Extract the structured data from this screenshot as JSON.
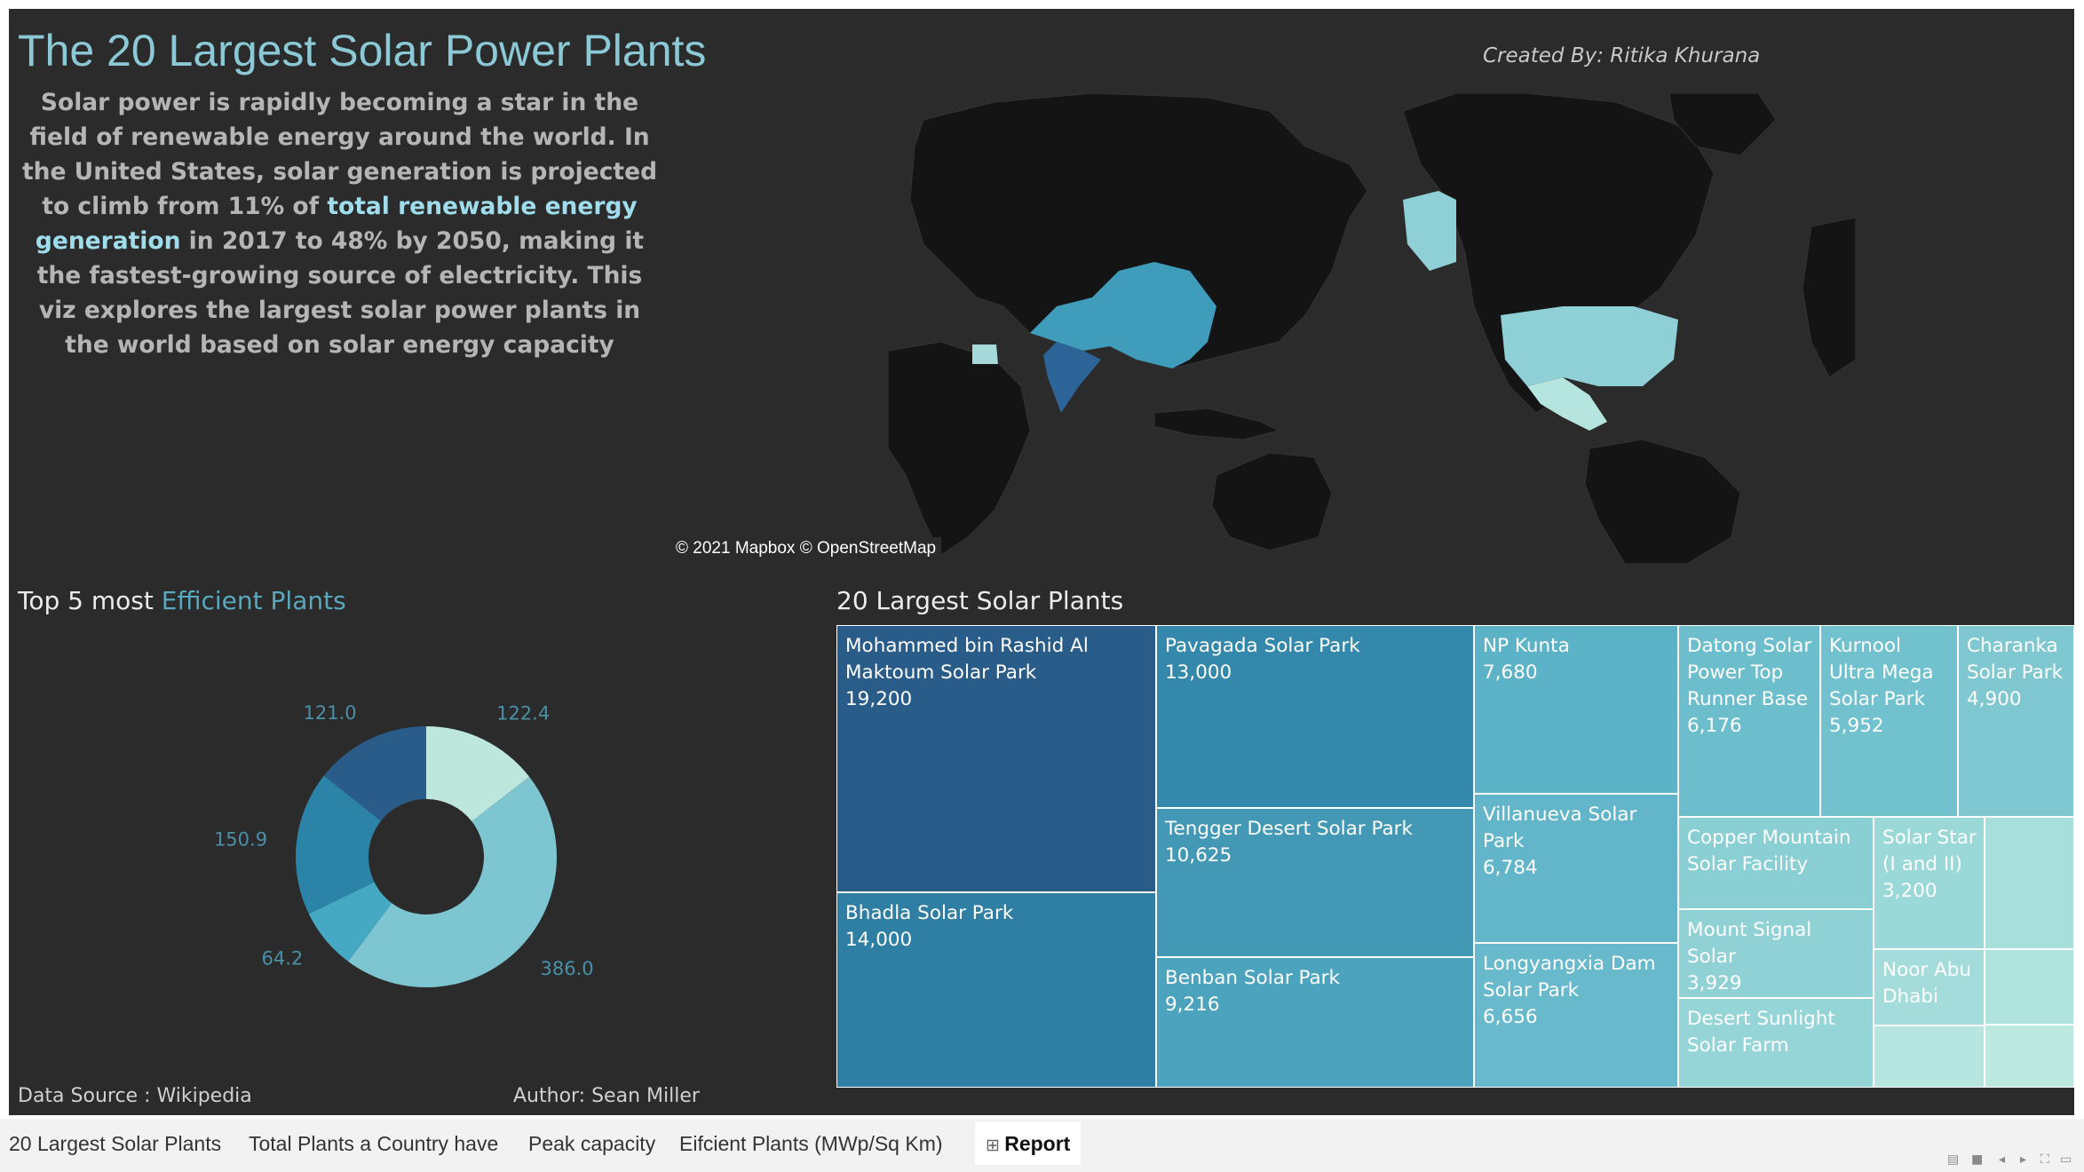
{
  "header": {
    "title": "The 20 Largest Solar Power Plants",
    "credit": "Created By: Ritika Khurana",
    "intro_before": "Solar power is rapidly becoming a star in the field of renewable energy around the world. In the United States, solar generation is projected to climb from 11% of ",
    "intro_highlight": "total renewable energy generation",
    "intro_after": " in 2017 to 48% by 2050, making it the fastest-growing source of electricity. This viz explores the largest solar power plants in the world based on solar energy capacity"
  },
  "map": {
    "copyright": "© 2021 Mapbox © OpenStreetMap",
    "highlighted_countries": [
      "China",
      "India",
      "United States",
      "Egypt"
    ]
  },
  "donut_section": {
    "title_plain": "Top 5 most ",
    "title_accent": "Efficient Plants"
  },
  "treemap_section": {
    "title": "20 Largest Solar Plants"
  },
  "footer": {
    "source": "Data Source : Wikipedia",
    "author": "Author: Sean Miller"
  },
  "chart_data": [
    {
      "type": "pie",
      "title": "Top 5 most Efficient Plants",
      "values": [
        122.4,
        386.0,
        64.2,
        150.9,
        121.0
      ],
      "labels": [
        "122.4",
        "386.0",
        "64.2",
        "150.9",
        "121.0"
      ],
      "colors": [
        "#bde6dd",
        "#7cc5d1",
        "#45a9c3",
        "#2c83a8",
        "#2a5c89"
      ]
    },
    {
      "type": "treemap",
      "title": "20 Largest Solar Plants",
      "items": [
        {
          "name": "Mohammed bin Rashid Al Maktoum Solar Park",
          "value": 19200,
          "value_label": "19,200",
          "color": "#2a5c89"
        },
        {
          "name": "Bhadla Solar Park",
          "value": 14000,
          "value_label": "14,000",
          "color": "#2f7ea4"
        },
        {
          "name": "Pavagada Solar Park",
          "value": 13000,
          "value_label": "13,000",
          "color": "#3488ab"
        },
        {
          "name": "Tengger Desert Solar Park",
          "value": 10625,
          "value_label": "10,625",
          "color": "#4398b6"
        },
        {
          "name": "Benban Solar Park",
          "value": 9216,
          "value_label": "9,216",
          "color": "#4ba3bd"
        },
        {
          "name": "NP Kunta",
          "value": 7680,
          "value_label": "7,680",
          "color": "#5cb2c6"
        },
        {
          "name": "Villanueva Solar Park",
          "value": 6784,
          "value_label": "6,784",
          "color": "#63b6c9"
        },
        {
          "name": "Longyangxia Dam Solar Park",
          "value": 6656,
          "value_label": "6,656",
          "color": "#67b9cb"
        },
        {
          "name": "Datong Solar Power Top Runner Base",
          "value": 6176,
          "value_label": "6,176",
          "color": "#6dbecd"
        },
        {
          "name": "Kurnool Ultra Mega Solar Park",
          "value": 5952,
          "value_label": "5,952",
          "color": "#72c1cf"
        },
        {
          "name": "Charanka Solar Park",
          "value": 4900,
          "value_label": "4,900",
          "color": "#7fc8d2"
        },
        {
          "name": "Copper Mountain Solar Facility",
          "value": null,
          "value_label": "",
          "color": "#8acfd4"
        },
        {
          "name": "Mount Signal Solar",
          "value": 3929,
          "value_label": "3,929",
          "color": "#8fd1d5"
        },
        {
          "name": "Desert Sunlight Solar Farm",
          "value": null,
          "value_label": "",
          "color": "#95d4d7"
        },
        {
          "name": "Solar Star (I and II)",
          "value": 3200,
          "value_label": "3,200",
          "color": "#9bd8d8"
        },
        {
          "name": "Noor Abu Dhabi",
          "value": null,
          "value_label": "",
          "color": "#a3dcda"
        },
        {
          "name": "",
          "value": null,
          "value_label": "",
          "color": "#a9dfdb"
        },
        {
          "name": "",
          "value": null,
          "value_label": "",
          "color": "#b0e3dd"
        },
        {
          "name": "",
          "value": null,
          "value_label": "",
          "color": "#b6e6df"
        },
        {
          "name": "",
          "value": null,
          "value_label": "",
          "color": "#bce8e0"
        }
      ]
    }
  ],
  "tabs": [
    {
      "label": "20 Largest Solar Plants"
    },
    {
      "label": "Total Plants a Country have"
    },
    {
      "label": "Peak capacity"
    },
    {
      "label": "Eifcient Plants (MWp/Sq Km)"
    },
    {
      "label": "Report",
      "icon": "grid-icon",
      "active": true
    }
  ]
}
